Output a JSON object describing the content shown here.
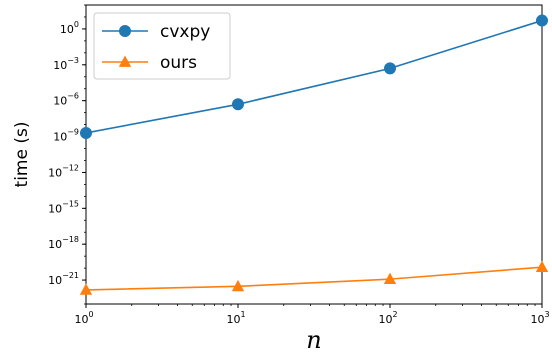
{
  "chart_data": {
    "type": "line",
    "title": "",
    "xlabel": "n",
    "ylabel": "time (s)",
    "xscale": "log",
    "yscale": "log",
    "x": [
      1,
      10,
      100,
      1000
    ],
    "xlim": [
      1,
      1000
    ],
    "ylim": [
      1e-23,
      100.0
    ],
    "x_ticks": [
      {
        "value": 1,
        "base": "10",
        "exp": "0"
      },
      {
        "value": 10,
        "base": "10",
        "exp": "1"
      },
      {
        "value": 100,
        "base": "10",
        "exp": "2"
      },
      {
        "value": 1000,
        "base": "10",
        "exp": "3"
      }
    ],
    "y_ticks": [
      {
        "value": 1.0,
        "base": "10",
        "exp": "0"
      },
      {
        "value": 0.001,
        "base": "10",
        "exp": "−3"
      },
      {
        "value": 1e-06,
        "base": "10",
        "exp": "−6"
      },
      {
        "value": 1e-09,
        "base": "10",
        "exp": "−9"
      },
      {
        "value": 1e-12,
        "base": "10",
        "exp": "−12"
      },
      {
        "value": 1e-15,
        "base": "10",
        "exp": "−15"
      },
      {
        "value": 1e-18,
        "base": "10",
        "exp": "−18"
      },
      {
        "value": 1e-21,
        "base": "10",
        "exp": "−21"
      }
    ],
    "grid": false,
    "legend_position": "top-left",
    "series": [
      {
        "name": "cvxpy",
        "values": [
          2e-09,
          5e-07,
          0.0005,
          5.0
        ],
        "color": "#1f77b4",
        "marker": "circle"
      },
      {
        "name": "ours",
        "values": [
          1.5e-22,
          3e-22,
          1.2e-21,
          1.2e-20
        ],
        "color": "#ff7f0e",
        "marker": "triangle"
      }
    ]
  }
}
